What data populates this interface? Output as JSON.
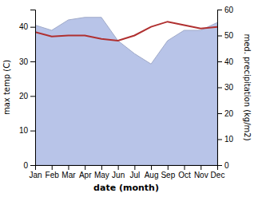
{
  "chart_data": {
    "type": "line",
    "categories": [
      "Jan",
      "Feb",
      "Mar",
      "Apr",
      "May",
      "Jun",
      "Jul",
      "Aug",
      "Sep",
      "Oct",
      "Nov",
      "Dec"
    ],
    "series": [
      {
        "type": "area",
        "axis": "y2",
        "color": "#b8c4e8",
        "values": [
          54,
          52,
          56,
          57,
          57,
          48,
          43,
          39,
          48,
          52,
          52,
          55
        ]
      },
      {
        "type": "line",
        "color": "#b03030",
        "values": [
          38.5,
          37.2,
          37.5,
          37.5,
          36.5,
          36.0,
          37.5,
          40.0,
          41.5,
          40.5,
          39.5,
          40.0
        ]
      }
    ],
    "xlabel": "date (month)",
    "ylabel": "max temp (C)",
    "y2label": "med. precipitation (kg/m2)",
    "ylim": [
      0,
      45
    ],
    "yticks": [
      0,
      10,
      20,
      30,
      40
    ],
    "y2lim": [
      0,
      60
    ],
    "y2ticks": [
      0,
      10,
      20,
      30,
      40,
      50,
      60
    ],
    "grid": false
  }
}
